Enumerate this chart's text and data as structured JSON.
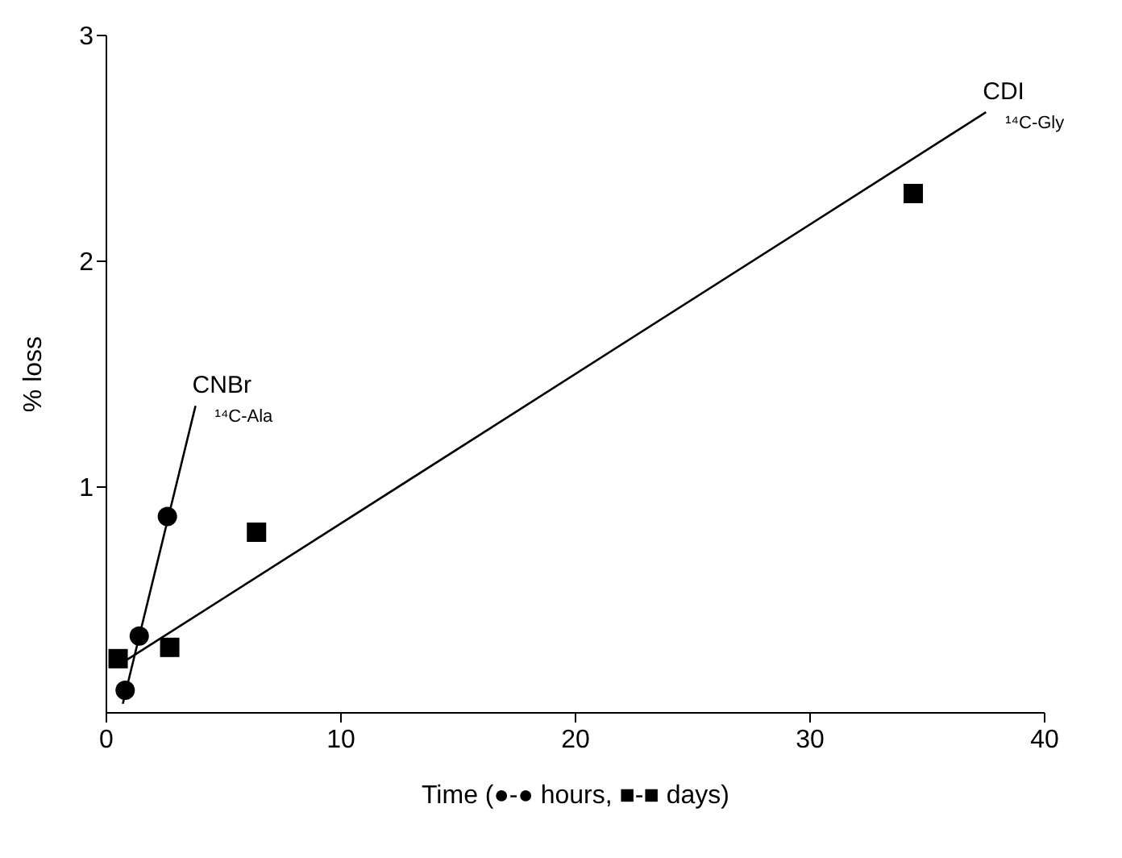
{
  "chart_data": {
    "type": "scatter",
    "xlabel": "Time (●-● hours, ■-■ days)",
    "ylabel": "% loss",
    "series": [
      {
        "color": "#000000",
        "marker": "circle",
        "x": [
          0.8,
          1.4,
          2.6
        ],
        "values": [
          0.1,
          0.34,
          0.87
        ]
      },
      {
        "color": "#000000",
        "marker": "square",
        "x": [
          0.5,
          2.7,
          6.4,
          34.4
        ],
        "values": [
          0.24,
          0.29,
          0.8,
          2.3
        ]
      },
      {
        "type": "line",
        "name": "CNBr",
        "color": "#000000",
        "marker": "none",
        "x": [
          0.7,
          3.8
        ],
        "values": [
          0.04,
          1.36
        ]
      },
      {
        "type": "line",
        "name": "CDI",
        "color": "#000000",
        "marker": "none",
        "x": [
          0.5,
          37.5
        ],
        "values": [
          0.21,
          2.66
        ]
      }
    ],
    "annotations": [
      "¹⁴C-Ala",
      "¹⁴C-Gly"
    ],
    "xlim": [
      0,
      40
    ],
    "xticks": [
      0,
      10,
      20,
      30,
      40
    ],
    "ylim": [
      0,
      3
    ],
    "yticks": [
      1,
      2,
      3
    ],
    "grid": false,
    "legend": false
  }
}
